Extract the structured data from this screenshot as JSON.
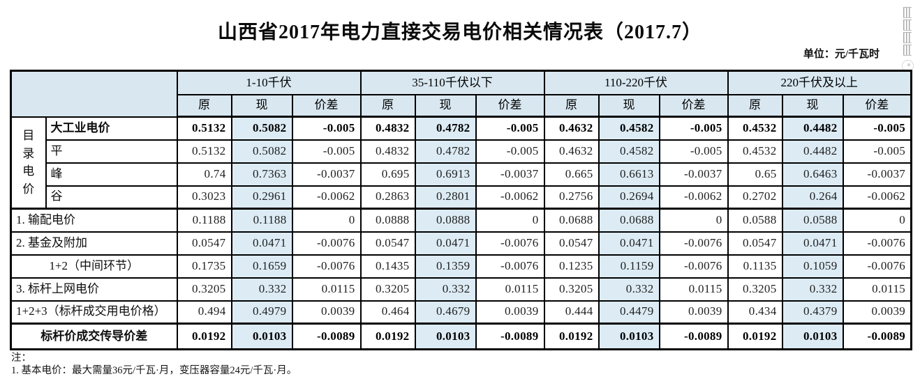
{
  "title": "山西省2017年电力直接交易电价相关情况表（2017.7）",
  "unit_label": "单位：元/千瓦时",
  "colors": {
    "header_bg": "#d8e7f0",
    "highlight_bg": "#dcebf4",
    "border": "#000000"
  },
  "table": {
    "row_group_label": "目录电价",
    "groups": [
      {
        "label": "1-10千伏"
      },
      {
        "label": "35-110千伏以下"
      },
      {
        "label": "110-220千伏"
      },
      {
        "label": "220千伏及以上"
      }
    ],
    "sub_headers": [
      "原",
      "现",
      "价差"
    ],
    "rows": [
      {
        "label": "大工业电价",
        "bold": true,
        "align": "left",
        "in_group": true,
        "values": [
          "0.5132",
          "0.5082",
          "-0.005",
          "0.4832",
          "0.4782",
          "-0.005",
          "0.4632",
          "0.4582",
          "-0.005",
          "0.4532",
          "0.4482",
          "-0.005"
        ]
      },
      {
        "label": "平",
        "bold": false,
        "align": "left",
        "in_group": true,
        "values": [
          "0.5132",
          "0.5082",
          "-0.005",
          "0.4832",
          "0.4782",
          "-0.005",
          "0.4632",
          "0.4582",
          "-0.005",
          "0.4532",
          "0.4482",
          "-0.005"
        ]
      },
      {
        "label": "峰",
        "bold": false,
        "align": "left",
        "in_group": true,
        "values": [
          "0.74",
          "0.7363",
          "-0.0037",
          "0.695",
          "0.6913",
          "-0.0037",
          "0.665",
          "0.6613",
          "-0.0037",
          "0.65",
          "0.6463",
          "-0.0037"
        ]
      },
      {
        "label": "谷",
        "bold": false,
        "align": "left",
        "in_group": true,
        "values": [
          "0.3023",
          "0.2961",
          "-0.0062",
          "0.2863",
          "0.2801",
          "-0.0062",
          "0.2756",
          "0.2694",
          "-0.0062",
          "0.2702",
          "0.264",
          "-0.0062"
        ]
      },
      {
        "label": "1. 输配电价",
        "bold": false,
        "align": "left",
        "in_group": false,
        "values": [
          "0.1188",
          "0.1188",
          "0",
          "0.0888",
          "0.0888",
          "0",
          "0.0688",
          "0.0688",
          "0",
          "0.0588",
          "0.0588",
          "0"
        ]
      },
      {
        "label": "2. 基金及附加",
        "bold": false,
        "align": "left",
        "in_group": false,
        "values": [
          "0.0547",
          "0.0471",
          "-0.0076",
          "0.0547",
          "0.0471",
          "-0.0076",
          "0.0547",
          "0.0471",
          "-0.0076",
          "0.0547",
          "0.0471",
          "-0.0076"
        ]
      },
      {
        "label": "1+2（中间环节）",
        "bold": false,
        "align": "center",
        "in_group": false,
        "values": [
          "0.1735",
          "0.1659",
          "-0.0076",
          "0.1435",
          "0.1359",
          "-0.0076",
          "0.1235",
          "0.1159",
          "-0.0076",
          "0.1135",
          "0.1059",
          "-0.0076"
        ]
      },
      {
        "label": "3. 标杆上网电价",
        "bold": false,
        "align": "left",
        "in_group": false,
        "values": [
          "0.3205",
          "0.332",
          "0.0115",
          "0.3205",
          "0.332",
          "0.0115",
          "0.3205",
          "0.332",
          "0.0115",
          "0.3205",
          "0.332",
          "0.0115"
        ]
      },
      {
        "label": "1+2+3（标杆成交用电价格）",
        "bold": false,
        "align": "left",
        "in_group": false,
        "values": [
          "0.494",
          "0.4979",
          "0.0039",
          "0.464",
          "0.4679",
          "0.0039",
          "0.444",
          "0.4479",
          "0.0039",
          "0.434",
          "0.4379",
          "0.0039"
        ]
      },
      {
        "label": "标杆价成交传导价差",
        "bold": true,
        "align": "center",
        "in_group": false,
        "values": [
          "0.0192",
          "0.0103",
          "-0.0089",
          "0.0192",
          "0.0103",
          "-0.0089",
          "0.0192",
          "0.0103",
          "-0.0089",
          "0.0192",
          "0.0103",
          "-0.0089"
        ]
      }
    ]
  },
  "notes": [
    "注：",
    "1. 基本电价：最大需量36元/千瓦·月，变压器容量24元/千瓦·月。"
  ]
}
